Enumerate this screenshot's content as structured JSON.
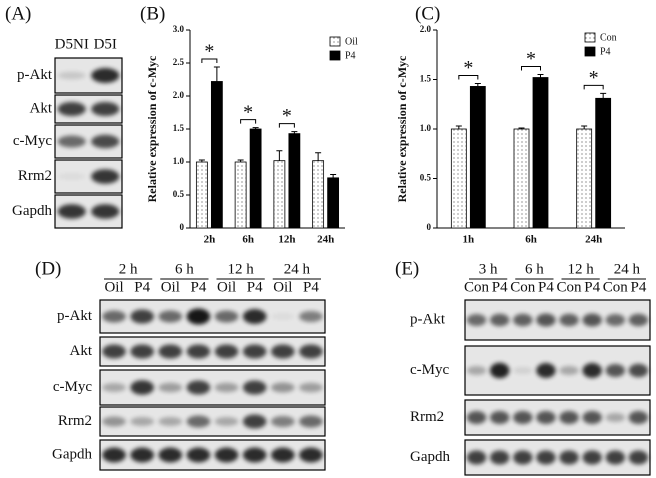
{
  "chart_data": [
    {
      "type": "bar",
      "panel_label": "(B)",
      "y_label": "Relative expression of c-Myc",
      "categories": [
        "2h",
        "6h",
        "12h",
        "24h"
      ],
      "series": [
        {
          "name": "Oil",
          "color": "#ffffff",
          "hatch": "dots",
          "values": [
            1.0,
            1.0,
            1.02,
            1.02
          ],
          "errors": [
            0.03,
            0.03,
            0.15,
            0.12
          ]
        },
        {
          "name": "P4",
          "color": "#000000",
          "values": [
            2.22,
            1.5,
            1.43,
            0.76
          ],
          "errors": [
            0.22,
            0.02,
            0.03,
            0.05
          ]
        }
      ],
      "significance": [
        "*",
        "*",
        "*",
        null
      ],
      "ylim": [
        0,
        3
      ],
      "yticks": [
        0,
        0.5,
        {
          "value": 1,
          "label": "1.0"
        },
        1.5,
        {
          "value": 2,
          "label": "2.0"
        },
        2.5,
        {
          "value": 3,
          "label": "3.0"
        }
      ],
      "legend": "upper right"
    },
    {
      "type": "bar",
      "panel_label": "(C)",
      "y_label": "Relative expression of c-Myc",
      "categories": [
        "1h",
        "6h",
        "24h"
      ],
      "series": [
        {
          "name": "Con",
          "color": "#ffffff",
          "hatch": "dots",
          "values": [
            1.0,
            1.0,
            1.0
          ],
          "errors": [
            0.03,
            0.01,
            0.03
          ]
        },
        {
          "name": "P4",
          "color": "#000000",
          "values": [
            1.43,
            1.52,
            1.31
          ],
          "errors": [
            0.03,
            0.03,
            0.05
          ]
        }
      ],
      "significance": [
        "*",
        "*",
        "*"
      ],
      "ylim": [
        0,
        2
      ],
      "yticks": [
        0,
        0.5,
        {
          "value": 1,
          "label": "1.0"
        },
        1.5,
        {
          "value": 2,
          "label": "2.0"
        }
      ],
      "legend": "upper right"
    }
  ],
  "blots": [
    {
      "panel_label": "(A)",
      "groups": [],
      "lanes": [
        "D5NI",
        "D5I"
      ],
      "rows": [
        "p-Akt",
        "Akt",
        "c-Myc",
        "Rrm2",
        "Gapdh"
      ]
    },
    {
      "panel_label": "(D)",
      "groups": [
        "2 h",
        "6 h",
        "12 h",
        "24 h"
      ],
      "lanes": [
        "Oil",
        "P4",
        "Oil",
        "P4",
        "Oil",
        "P4",
        "Oil",
        "P4"
      ],
      "rows": [
        "p-Akt",
        "Akt",
        "c-Myc",
        "Rrm2",
        "Gapdh"
      ]
    },
    {
      "panel_label": "(E)",
      "groups": [
        "3 h",
        "6 h",
        "12 h",
        "24 h"
      ],
      "lanes": [
        "Con",
        "P4",
        "Con",
        "P4",
        "Con",
        "P4",
        "Con",
        "P4"
      ],
      "rows": [
        "p-Akt",
        "c-Myc",
        "Rrm2",
        "Gapdh"
      ]
    }
  ]
}
